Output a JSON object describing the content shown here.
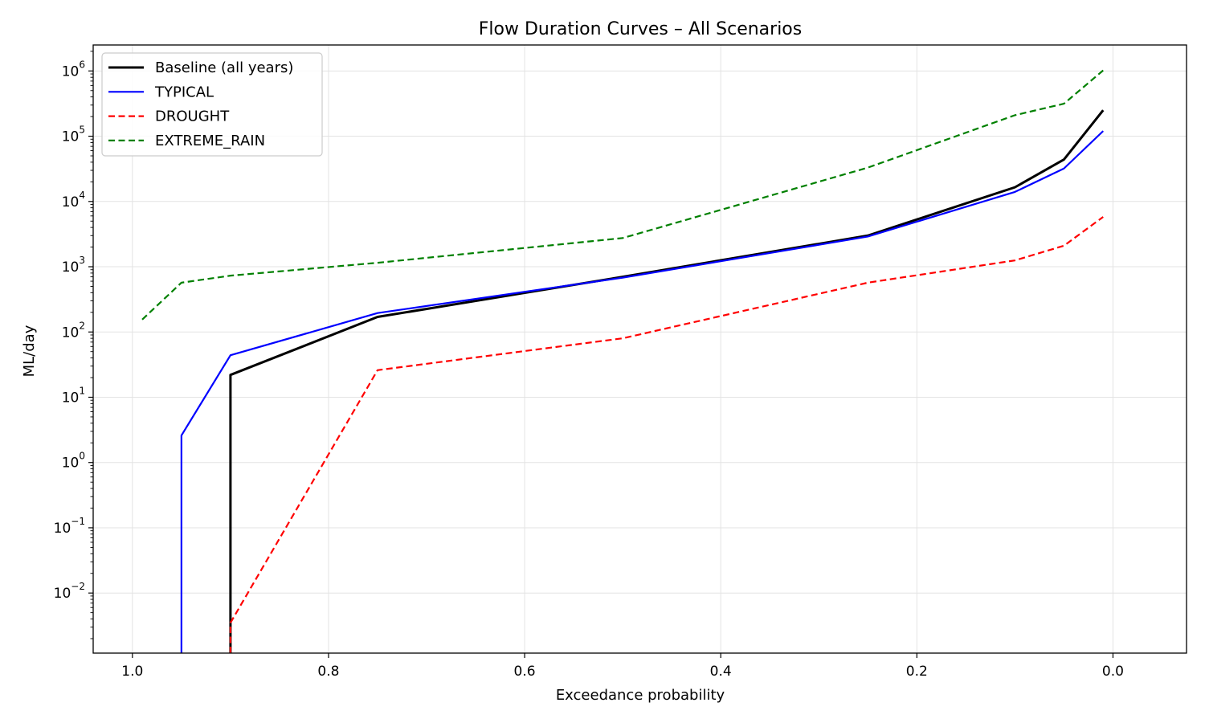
{
  "chart_data": {
    "type": "line",
    "title": "Flow Duration Curves – All Scenarios",
    "xlabel": "Exceedance probability",
    "ylabel": "ML/day",
    "x_reversed": true,
    "xlim": [
      1.04,
      -0.075
    ],
    "y_scale": "log",
    "ylim": [
      0.0012,
      2500000
    ],
    "x_ticks": [
      1.0,
      0.8,
      0.6,
      0.4,
      0.2,
      0.0
    ],
    "x_tick_labels": [
      "1.0",
      "0.8",
      "0.6",
      "0.4",
      "0.2",
      "0.0"
    ],
    "y_ticks": [
      {
        "value": 0.01,
        "base": "10",
        "exp": "−2"
      },
      {
        "value": 0.1,
        "base": "10",
        "exp": "−1"
      },
      {
        "value": 1,
        "base": "10",
        "exp": "0"
      },
      {
        "value": 10,
        "base": "10",
        "exp": "1"
      },
      {
        "value": 100,
        "base": "10",
        "exp": "2"
      },
      {
        "value": 1000,
        "base": "10",
        "exp": "3"
      },
      {
        "value": 10000,
        "base": "10",
        "exp": "4"
      },
      {
        "value": 100000,
        "base": "10",
        "exp": "5"
      },
      {
        "value": 1000000,
        "base": "10",
        "exp": "6"
      }
    ],
    "grid": true,
    "legend_position": "top-left",
    "series": [
      {
        "name": "Baseline (all years)",
        "color": "#000000",
        "dashed": false,
        "width": 3,
        "points": [
          [
            0.9,
            0.0012
          ],
          [
            0.9,
            22
          ],
          [
            0.75,
            170
          ],
          [
            0.5,
            700
          ],
          [
            0.25,
            3000
          ],
          [
            0.1,
            16500
          ],
          [
            0.05,
            44000
          ],
          [
            0.01,
            250000
          ]
        ]
      },
      {
        "name": "TYPICAL",
        "color": "#0000ff",
        "dashed": false,
        "width": 2.2,
        "points": [
          [
            0.95,
            0.0012
          ],
          [
            0.95,
            2.6
          ],
          [
            0.9,
            44
          ],
          [
            0.75,
            195
          ],
          [
            0.5,
            680
          ],
          [
            0.25,
            2900
          ],
          [
            0.1,
            14000
          ],
          [
            0.05,
            32000
          ],
          [
            0.01,
            120000
          ]
        ]
      },
      {
        "name": "DROUGHT",
        "color": "#ff0000",
        "dashed": true,
        "width": 2.2,
        "points": [
          [
            0.9,
            0.0012
          ],
          [
            0.9,
            0.0035
          ],
          [
            0.75,
            26
          ],
          [
            0.5,
            80
          ],
          [
            0.25,
            570
          ],
          [
            0.1,
            1250
          ],
          [
            0.05,
            2100
          ],
          [
            0.01,
            5800
          ]
        ]
      },
      {
        "name": "EXTREME_RAIN",
        "color": "#008000",
        "dashed": true,
        "width": 2.2,
        "points": [
          [
            0.99,
            155
          ],
          [
            0.95,
            570
          ],
          [
            0.9,
            730
          ],
          [
            0.75,
            1150
          ],
          [
            0.5,
            2750
          ],
          [
            0.25,
            33000
          ],
          [
            0.1,
            210000
          ],
          [
            0.05,
            315000
          ],
          [
            0.01,
            1020000
          ]
        ]
      }
    ]
  }
}
